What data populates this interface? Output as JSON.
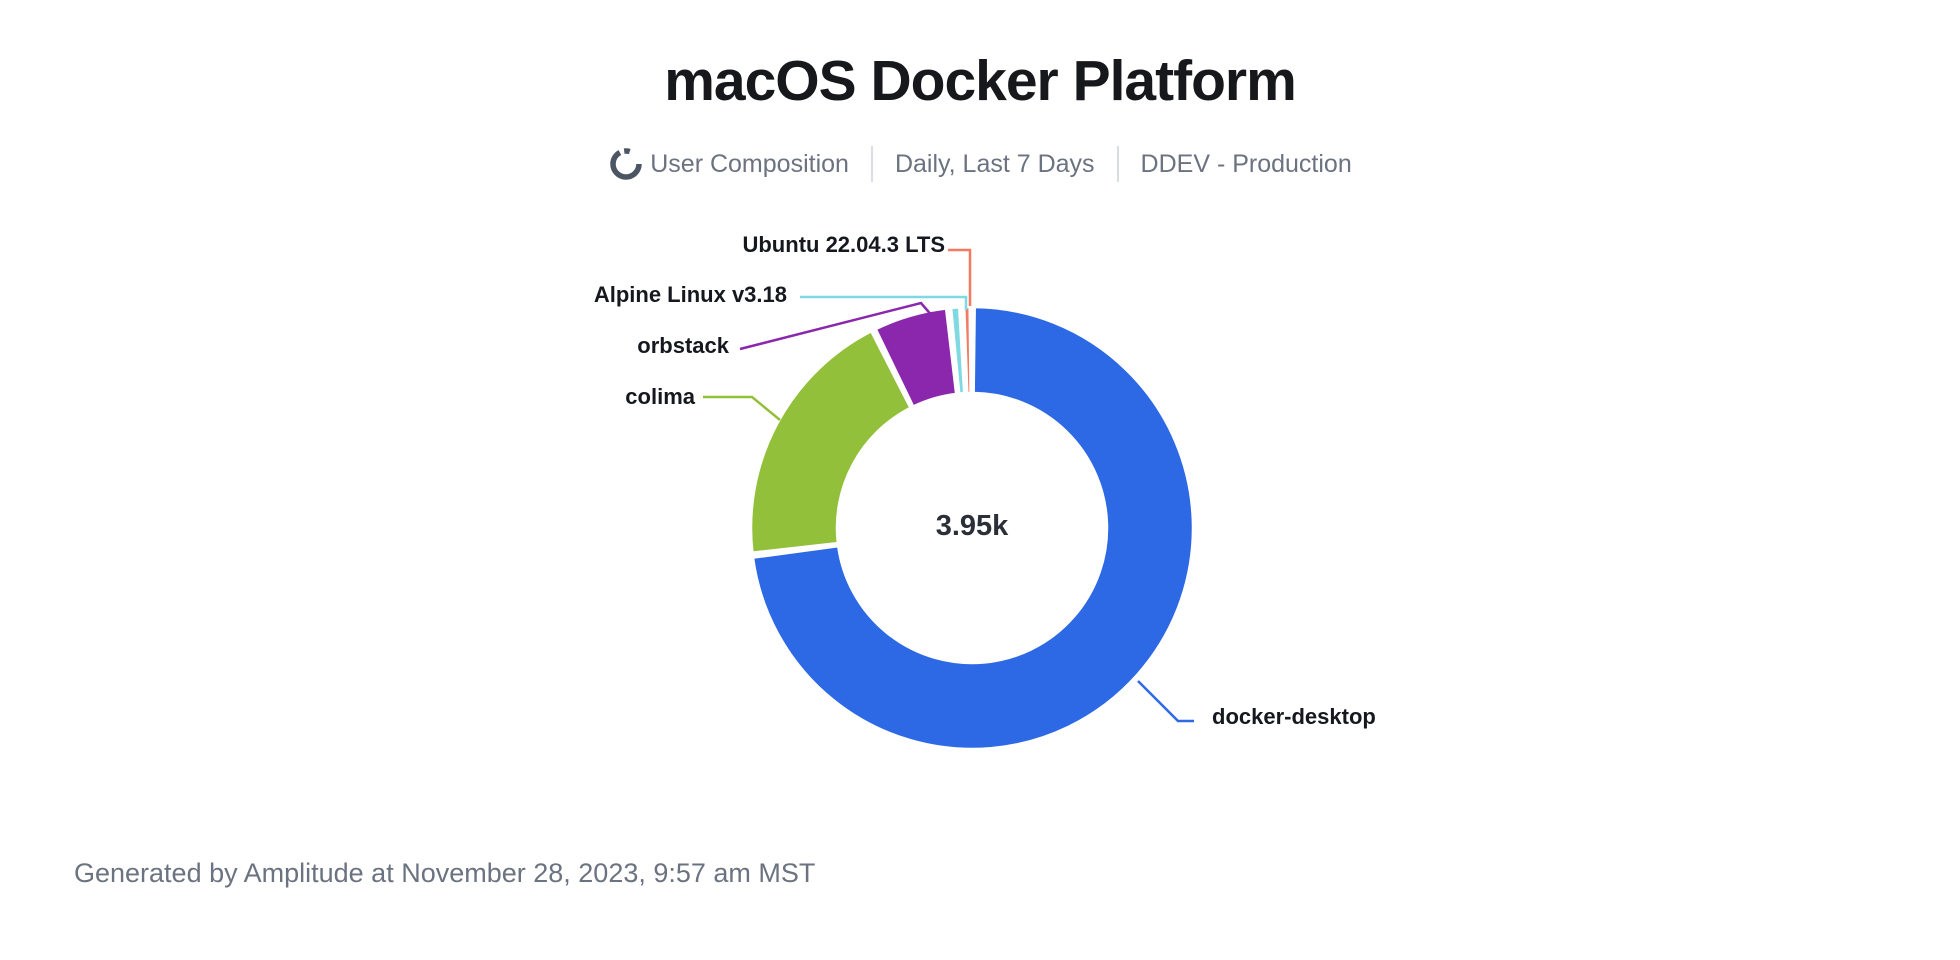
{
  "header": {
    "title": "macOS Docker Platform",
    "subtitle": {
      "icon": "donut-chart-icon",
      "chart_type_label": "User Composition",
      "date_range_label": "Daily, Last 7 Days",
      "source_label": "DDEV - Production"
    }
  },
  "chart_data": {
    "type": "pie",
    "subtype": "donut",
    "title": "macOS Docker Platform",
    "center_total": "3.95k",
    "legend_position": "callout-labels",
    "grid": false,
    "slices": [
      {
        "label": "docker-desktop",
        "percent_estimate": 74.0,
        "color": "#2d69e5"
      },
      {
        "label": "colima",
        "percent_estimate": 19.6,
        "color": "#93c03a"
      },
      {
        "label": "orbstack",
        "percent_estimate": 5.4,
        "color": "#8b27ac"
      },
      {
        "label": "Alpine Linux v3.18",
        "percent_estimate": 0.6,
        "color": "#7fd9e2"
      },
      {
        "label": "Ubuntu 22.04.3 LTS",
        "percent_estimate": 0.4,
        "color": "#f3795f"
      }
    ]
  },
  "footer": {
    "generated_text": "Generated by Amplitude at November 28, 2023, 9:57 am MST"
  }
}
